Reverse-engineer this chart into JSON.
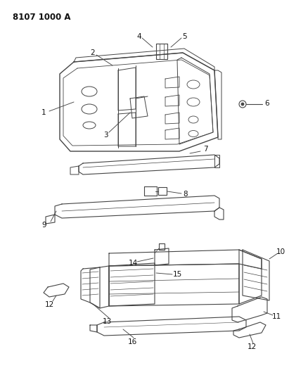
{
  "title": "8107 1000 A",
  "bg_color": "#ffffff",
  "line_color": "#444444",
  "text_color": "#111111",
  "title_fontsize": 8.5,
  "label_fontsize": 7.5
}
